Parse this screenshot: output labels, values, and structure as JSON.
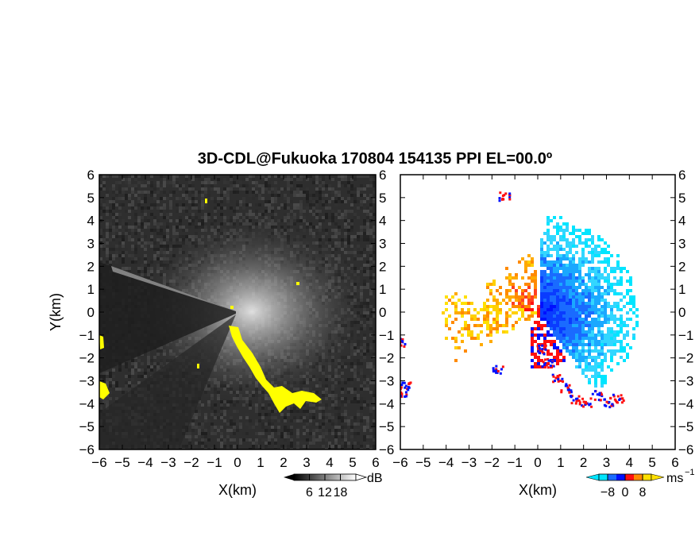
{
  "chart_data": [
    {
      "type": "heatmap",
      "panel": "reflectivity",
      "title": "3D-CDL@Fukuoka 170804 154135 PPI EL=00.0º",
      "xlabel": "X(km)",
      "ylabel": "Y(km)",
      "xlim": [
        -6,
        6
      ],
      "ylim": [
        -6,
        6
      ],
      "xticks": [
        "−6",
        "−5",
        "−4",
        "−3",
        "−2",
        "−1",
        "0",
        "1",
        "2",
        "3",
        "4",
        "5",
        "6"
      ],
      "yticks": [
        "−6",
        "−5",
        "−4",
        "−3",
        "−2",
        "−1",
        "0",
        "1",
        "2",
        "3",
        "4",
        "5",
        "6"
      ],
      "colorbar": {
        "unit": "dB",
        "ticks": [
          "6",
          "12",
          "18"
        ],
        "range": [
          0,
          24
        ],
        "palette": "grayscale"
      },
      "highlight_color": "#ffff00",
      "background_color": "#2e2e2e"
    },
    {
      "type": "heatmap",
      "panel": "doppler_velocity",
      "xlabel": "X(km)",
      "xlim": [
        -6,
        6
      ],
      "ylim": [
        -6,
        6
      ],
      "xticks": [
        "−6",
        "−5",
        "−4",
        "−3",
        "−2",
        "−1",
        "0",
        "1",
        "2",
        "3",
        "4",
        "5",
        "6"
      ],
      "yticks": [
        "−6",
        "−5",
        "−4",
        "−3",
        "−2",
        "−1",
        "0",
        "1",
        "2",
        "3",
        "4",
        "5",
        "6"
      ],
      "colorbar": {
        "unit": "ms",
        "unit_exponent": "−1",
        "ticks": [
          "−8",
          "0",
          "8"
        ],
        "range": [
          -12,
          12
        ],
        "palette": [
          "#00e5ff",
          "#1a6bff",
          "#0010ff",
          "#ff1010",
          "#ff8a00",
          "#ffe000"
        ]
      },
      "approach_color": "#00ccff",
      "recede_color": "#ff2000"
    }
  ]
}
